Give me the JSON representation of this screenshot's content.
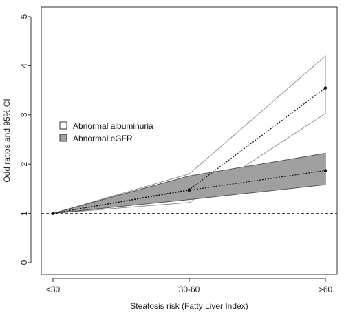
{
  "chart_data": {
    "type": "line",
    "xlabel": "Steatosis risk (Fatty Liver Index)",
    "ylabel": "Odd ratios and 95% CI",
    "categories": [
      "<30",
      "30-60",
      ">60"
    ],
    "ylim": [
      0,
      5
    ],
    "yticks": [
      0,
      1,
      2,
      3,
      4,
      5
    ],
    "reference_line": 1,
    "legend_position": "center-left",
    "series": [
      {
        "name": "Abnormal albuminuria",
        "fill": "#ffffff",
        "stroke": "#8c8c8c",
        "values": [
          1.0,
          1.48,
          3.55
        ],
        "lower": [
          1.0,
          1.22,
          3.03
        ],
        "upper": [
          1.0,
          1.8,
          4.2
        ]
      },
      {
        "name": "Abnormal eGFR",
        "fill": "#a0a0a0",
        "stroke": "#555555",
        "values": [
          1.0,
          1.47,
          1.87
        ],
        "lower": [
          1.0,
          1.28,
          1.58
        ],
        "upper": [
          1.0,
          1.76,
          2.22
        ]
      }
    ]
  }
}
